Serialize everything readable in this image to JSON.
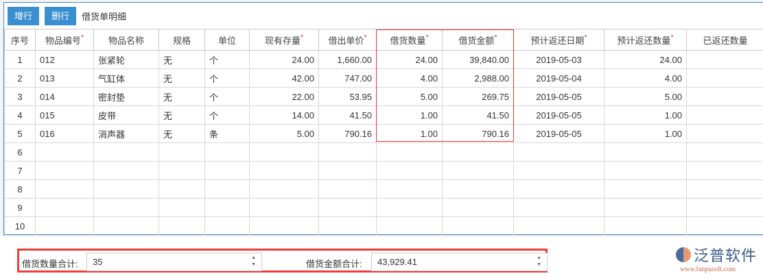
{
  "toolbar": {
    "add_row": "增行",
    "delete_row": "删行",
    "title": "借货单明细"
  },
  "columns": [
    {
      "label": "序号",
      "required": false
    },
    {
      "label": "物品编号",
      "required": true
    },
    {
      "label": "物品名称",
      "required": false
    },
    {
      "label": "规格",
      "required": false
    },
    {
      "label": "单位",
      "required": false
    },
    {
      "label": "现有存量",
      "required": true
    },
    {
      "label": "借出单价",
      "required": true
    },
    {
      "label": "借货数量",
      "required": true
    },
    {
      "label": "借货金额",
      "required": true
    },
    {
      "label": "预计返还日期",
      "required": true
    },
    {
      "label": "预计返还数量",
      "required": true
    },
    {
      "label": "已返还数量",
      "required": false
    }
  ],
  "rows": [
    [
      "1",
      "012",
      "张紧轮",
      "无",
      "个",
      "24.00",
      "1,660.00",
      "24.00",
      "39,840.00",
      "2019-05-03",
      "24.00",
      ""
    ],
    [
      "2",
      "013",
      "气缸体",
      "无",
      "个",
      "42.00",
      "747.00",
      "4.00",
      "2,988.00",
      "2019-05-04",
      "4.00",
      ""
    ],
    [
      "3",
      "014",
      "密封垫",
      "无",
      "个",
      "22.00",
      "53.95",
      "5.00",
      "269.75",
      "2019-05-05",
      "5.00",
      ""
    ],
    [
      "4",
      "015",
      "皮带",
      "无",
      "个",
      "14.00",
      "41.50",
      "1.00",
      "41.50",
      "2019-05-05",
      "1.00",
      ""
    ],
    [
      "5",
      "016",
      "消声器",
      "无",
      "条",
      "5.00",
      "790.16",
      "1.00",
      "790.16",
      "2019-05-05",
      "1.00",
      ""
    ],
    [
      "6",
      "",
      "",
      "",
      "",
      "",
      "",
      "",
      "",
      "",
      "",
      ""
    ],
    [
      "7",
      "",
      "",
      "",
      "",
      "",
      "",
      "",
      "",
      "",
      "",
      ""
    ],
    [
      "8",
      "",
      "",
      "",
      "",
      "",
      "",
      "",
      "",
      "",
      "",
      ""
    ],
    [
      "9",
      "",
      "",
      "",
      "",
      "",
      "",
      "",
      "",
      "",
      "",
      ""
    ],
    [
      "10",
      "",
      "",
      "",
      "",
      "",
      "",
      "",
      "",
      "",
      "",
      ""
    ]
  ],
  "footer": {
    "qty_label": "借货数量合计:",
    "qty_value": "35",
    "amount_label": "借货金额合计:",
    "amount_value": "43,929.41"
  },
  "logo": {
    "name": "泛普软件",
    "url": "www.fanpusoft.com"
  },
  "colors": {
    "accent": "#3a8fd0",
    "highlight": "#f03c3c"
  }
}
